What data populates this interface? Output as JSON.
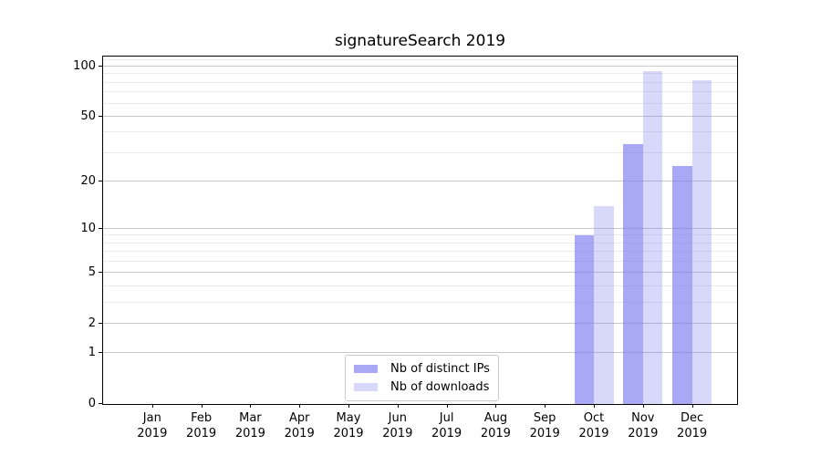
{
  "title": "signatureSearch 2019",
  "chart_data": {
    "type": "bar",
    "title": "signatureSearch 2019",
    "categories": [
      "Jan",
      "Feb",
      "Mar",
      "Apr",
      "May",
      "Jun",
      "Jul",
      "Aug",
      "Sep",
      "Oct",
      "Nov",
      "Dec"
    ],
    "year_label": "2019",
    "series": [
      {
        "name": "Nb of distinct IPs",
        "color": "rgba(127,127,240,0.68)",
        "legend_color": "#a8a8f5",
        "values": [
          0,
          0,
          0,
          0,
          0,
          0,
          0,
          0,
          0,
          9,
          34,
          25
        ]
      },
      {
        "name": "Nb of downloads",
        "color": "rgba(127,127,240,0.30)",
        "legend_color": "#d8d8fa",
        "values": [
          0,
          0,
          0,
          0,
          0,
          0,
          0,
          0,
          0,
          14,
          94,
          83
        ]
      }
    ],
    "yscale": "log1p",
    "ylim": [
      0,
      115
    ],
    "y_major_ticks": [
      0,
      1,
      2,
      5,
      10,
      20,
      50,
      100
    ],
    "y_minor_gridlines": [
      3,
      4,
      6,
      7,
      8,
      9,
      30,
      40,
      60,
      70,
      80,
      90,
      110
    ],
    "grid": true,
    "legend_position": "lower center"
  },
  "colors": {
    "major_grid": "#c8c8c8",
    "minor_grid": "#eaeaea",
    "spine": "#000000",
    "text": "#000000",
    "legend_border": "#cccccc",
    "background": "#ffffff"
  }
}
